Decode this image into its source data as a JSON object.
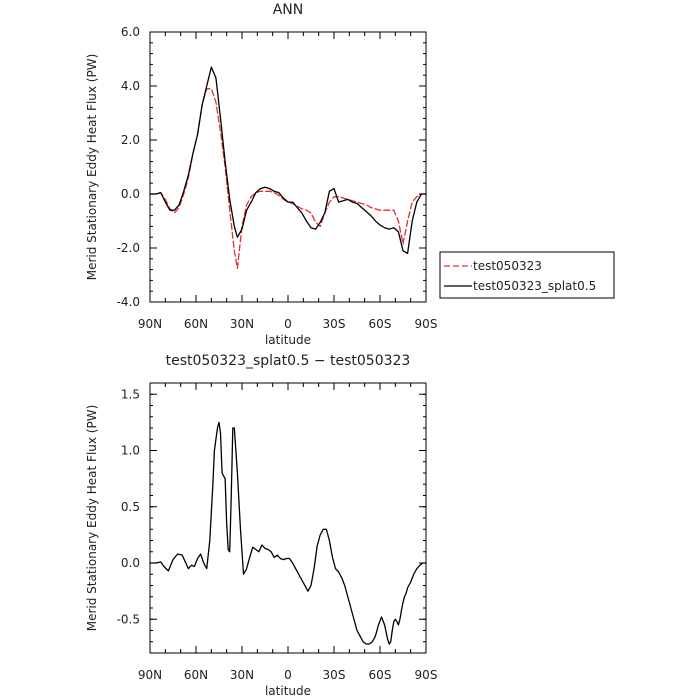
{
  "chart_data": [
    {
      "type": "line",
      "title": "ANN",
      "xlabel": "latitude",
      "ylabel": "Merid Stationary Eddy Heat Flux (PW)",
      "xlim": [
        90,
        -90
      ],
      "ylim": [
        -4.0,
        6.0
      ],
      "xticks": [
        90,
        60,
        30,
        0,
        -30,
        -60,
        -90
      ],
      "xtick_labels": [
        "90N",
        "60N",
        "30N",
        "0",
        "30S",
        "60S",
        "90S"
      ],
      "yticks": [
        -4,
        -2,
        0,
        2,
        4,
        6
      ],
      "ytick_labels": [
        "-4.0",
        "-2.0",
        "0.0",
        "2.0",
        "4.0",
        "6.0"
      ],
      "legend_position": "right",
      "series": [
        {
          "name": "test050323",
          "color": "#e03030",
          "dash": "dashed",
          "x": [
            90,
            86,
            83,
            80,
            77,
            74,
            71,
            68,
            65,
            62,
            59,
            56,
            53,
            50,
            47,
            44,
            41,
            38,
            35,
            33,
            30,
            27,
            24,
            21,
            18,
            15,
            12,
            9,
            6,
            3,
            0,
            -3,
            -6,
            -9,
            -12,
            -15,
            -18,
            -21,
            -24,
            -27,
            -30,
            -33,
            -36,
            -39,
            -42,
            -45,
            -48,
            -51,
            -54,
            -57,
            -60,
            -63,
            -66,
            -69,
            -72,
            -75,
            -78,
            -81,
            -84,
            -87,
            -90
          ],
          "y": [
            0,
            0,
            0.05,
            -0.2,
            -0.55,
            -0.7,
            -0.5,
            0,
            0.6,
            1.5,
            2.2,
            3.3,
            3.9,
            3.9,
            3.4,
            2.3,
            1,
            -0.6,
            -2.1,
            -2.75,
            -1.2,
            -0.4,
            -0.1,
            0.05,
            0.1,
            0.1,
            0.1,
            0.05,
            -0.05,
            -0.2,
            -0.3,
            -0.35,
            -0.45,
            -0.55,
            -0.6,
            -0.7,
            -1.05,
            -1.2,
            -0.7,
            -0.3,
            -0.1,
            -0.1,
            -0.15,
            -0.2,
            -0.25,
            -0.3,
            -0.35,
            -0.4,
            -0.5,
            -0.55,
            -0.6,
            -0.6,
            -0.6,
            -0.6,
            -1,
            -1.85,
            -1,
            -0.3,
            -0.1,
            0,
            0
          ]
        },
        {
          "name": "test050323_splat0.5",
          "color": "#000000",
          "dash": "solid",
          "x": [
            90,
            86,
            83,
            80,
            77,
            74,
            71,
            68,
            65,
            62,
            59,
            56,
            53,
            50,
            47,
            44,
            41,
            38,
            35,
            33,
            30,
            27,
            24,
            21,
            18,
            15,
            12,
            9,
            6,
            3,
            0,
            -3,
            -6,
            -9,
            -12,
            -15,
            -18,
            -21,
            -24,
            -27,
            -30,
            -33,
            -36,
            -39,
            -42,
            -45,
            -48,
            -51,
            -54,
            -57,
            -60,
            -63,
            -66,
            -69,
            -72,
            -75,
            -78,
            -81,
            -84,
            -87,
            -90
          ],
          "y": [
            0,
            0,
            0.05,
            -0.3,
            -0.6,
            -0.6,
            -0.4,
            0.1,
            0.7,
            1.5,
            2.2,
            3.3,
            4,
            4.7,
            4.3,
            2.8,
            1.2,
            -0.2,
            -1.2,
            -1.6,
            -1.3,
            -0.6,
            -0.3,
            0.05,
            0.2,
            0.25,
            0.2,
            0.1,
            0.05,
            -0.15,
            -0.3,
            -0.3,
            -0.5,
            -0.7,
            -1,
            -1.25,
            -1.3,
            -1.05,
            -0.7,
            0.1,
            0.2,
            -0.3,
            -0.25,
            -0.2,
            -0.3,
            -0.35,
            -0.5,
            -0.65,
            -0.8,
            -1,
            -1.15,
            -1.25,
            -1.3,
            -1.25,
            -1.4,
            -2.1,
            -2.2,
            -1,
            -0.3,
            0,
            0
          ]
        }
      ]
    },
    {
      "type": "line",
      "title": "test050323_splat0.5 − test050323",
      "xlabel": "latitude",
      "ylabel": "Merid Stationary Eddy Heat Flux (PW)",
      "xlim": [
        90,
        -90
      ],
      "ylim": [
        -0.8,
        1.6
      ],
      "xticks": [
        90,
        60,
        30,
        0,
        -30,
        -60,
        -90
      ],
      "xtick_labels": [
        "90N",
        "60N",
        "30N",
        "0",
        "30S",
        "60S",
        "90S"
      ],
      "yticks": [
        -0.5,
        0,
        0.5,
        1.0,
        1.5
      ],
      "ytick_labels": [
        "-0.5",
        "0.0",
        "0.5",
        "1.0",
        "1.5"
      ],
      "series": [
        {
          "name": "",
          "color": "#000000",
          "dash": "solid",
          "x": [
            90,
            86,
            83,
            81,
            78,
            75,
            72,
            69,
            67,
            65,
            63,
            61,
            59,
            57,
            55,
            53,
            51,
            49,
            48,
            46,
            45,
            44,
            43,
            41,
            40,
            39,
            38,
            37,
            36,
            35,
            33,
            31,
            29,
            27,
            25,
            23,
            21,
            19,
            17,
            15,
            13,
            11,
            9,
            7,
            5,
            3,
            1,
            -1,
            -3,
            -5,
            -7,
            -9,
            -11,
            -13,
            -15,
            -17,
            -19,
            -21,
            -23,
            -25,
            -27,
            -29,
            -31,
            -33,
            -35,
            -37,
            -39,
            -41,
            -43,
            -45,
            -47,
            -49,
            -51,
            -53,
            -55,
            -57,
            -59,
            -61,
            -63,
            -65,
            -66,
            -67,
            -68,
            -69,
            -70,
            -71,
            -72,
            -73,
            -74,
            -75,
            -76,
            -77,
            -78,
            -80,
            -82,
            -84,
            -86,
            -88,
            -90
          ],
          "y": [
            0,
            0,
            0.01,
            -0.03,
            -0.07,
            0.03,
            0.08,
            0.07,
            0.01,
            -0.05,
            -0.02,
            -0.03,
            0.04,
            0.08,
            0,
            -0.05,
            0.2,
            0.7,
            1,
            1.2,
            1.25,
            1.15,
            0.8,
            0.75,
            0.35,
            0.12,
            0.1,
            0.6,
            1.2,
            1.2,
            0.8,
            0.3,
            -0.1,
            -0.05,
            0.05,
            0.14,
            0.12,
            0.1,
            0.16,
            0.13,
            0.12,
            0.1,
            0.05,
            0.07,
            0.04,
            0.03,
            0.04,
            0.04,
            0,
            -0.05,
            -0.1,
            -0.15,
            -0.2,
            -0.25,
            -0.2,
            -0.05,
            0.15,
            0.25,
            0.3,
            0.3,
            0.2,
            0.05,
            -0.05,
            -0.08,
            -0.13,
            -0.2,
            -0.3,
            -0.4,
            -0.5,
            -0.6,
            -0.65,
            -0.7,
            -0.72,
            -0.72,
            -0.7,
            -0.65,
            -0.55,
            -0.48,
            -0.55,
            -0.68,
            -0.72,
            -0.7,
            -0.6,
            -0.52,
            -0.5,
            -0.52,
            -0.55,
            -0.5,
            -0.42,
            -0.35,
            -0.3,
            -0.27,
            -0.22,
            -0.17,
            -0.1,
            -0.05,
            -0.02,
            0,
            0
          ]
        }
      ]
    }
  ]
}
